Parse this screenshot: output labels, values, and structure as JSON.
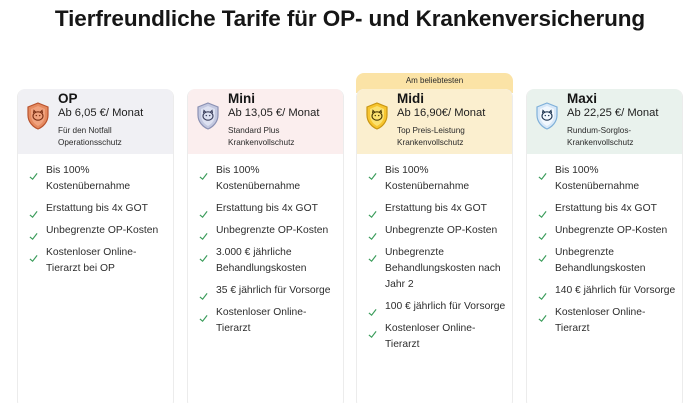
{
  "page_title": "Tierfreundliche Tarife für OP- und Krankenversicherung",
  "badge": "Am beliebtesten",
  "colors": {
    "check": "#3b9c5b",
    "op_shield": "#e07a52",
    "mini_shield": "#b9bfd9",
    "midi_shield": "#f5c12e",
    "maxi_shield": "#cfe3f7"
  },
  "plans": [
    {
      "name": "OP",
      "price": "Ab 6,05 €/ Monat",
      "desc": "Für den Notfall Operationsschutz",
      "icon": "shield-pet-icon",
      "features": [
        "Bis 100% Kostenübernahme",
        "Erstattung bis 4x GOT",
        "Unbegrenzte OP-Kosten",
        "Kostenloser Online-Tierarzt bei OP"
      ]
    },
    {
      "name": "Mini",
      "price": "Ab 13,05 €/ Monat",
      "desc": "Standard Plus Krankenvollschutz",
      "icon": "shield-pet-icon",
      "features": [
        "Bis 100% Kostenübernahme",
        "Erstattung bis 4x GOT",
        "Unbegrenzte OP-Kosten",
        "3.000 € jährliche Behandlungskosten",
        "35 € jährlich für Vorsorge",
        "Kostenloser Online-Tierarzt"
      ]
    },
    {
      "name": "Midi",
      "price": "Ab 16,90€/ Monat",
      "desc": "Top Preis-Leistung Krankenvollschutz",
      "icon": "shield-pet-icon",
      "features": [
        "Bis 100% Kostenübernahme",
        "Erstattung bis 4x GOT",
        "Unbegrenzte OP-Kosten",
        "Unbegrenzte Behandlungskosten nach Jahr 2",
        "100 € jährlich für Vorsorge",
        "Kostenloser Online-Tierarzt"
      ]
    },
    {
      "name": "Maxi",
      "price": "Ab 22,25 €/ Monat",
      "desc": "Rundum-Sorglos-Krankenvollschutz",
      "icon": "shield-pet-icon",
      "features": [
        "Bis 100% Kostenübernahme",
        "Erstattung bis 4x GOT",
        "Unbegrenzte OP-Kosten",
        "Unbegrenzte Behandlungskosten",
        "140 € jährlich für Vorsorge",
        "Kostenloser Online-Tierarzt"
      ]
    }
  ]
}
